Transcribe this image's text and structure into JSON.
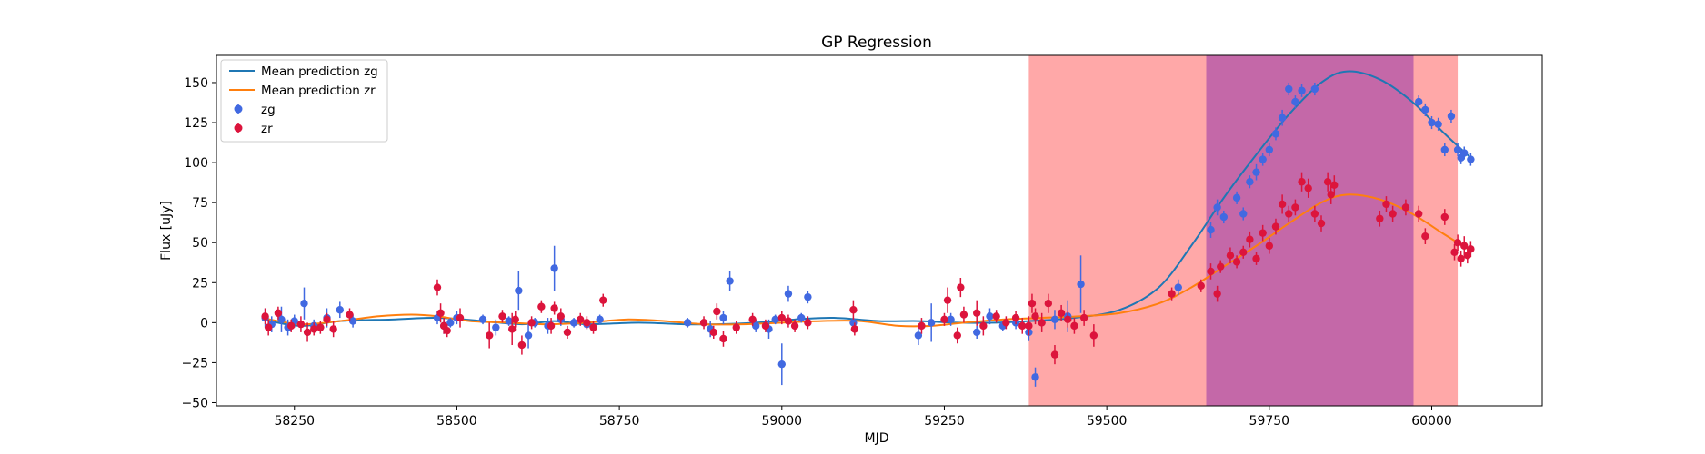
{
  "chart_data": {
    "type": "scatter",
    "title": "GP Regression",
    "xlabel": "MJD",
    "ylabel": "Flux [uJy]",
    "xlim": [
      58130,
      60170
    ],
    "ylim": [
      -52,
      167
    ],
    "xticks": [
      58250,
      58500,
      58750,
      59000,
      59250,
      59500,
      59750,
      60000
    ],
    "yticks": [
      -50,
      -25,
      0,
      25,
      50,
      75,
      100,
      125,
      150
    ],
    "grid": false,
    "legend_position": "top-left",
    "shaded_regions": [
      {
        "x_start": 59380,
        "x_end": 60040,
        "color": "#ffa8a8"
      },
      {
        "x_start": 59653,
        "x_end": 59972,
        "color": "#c468a8"
      }
    ],
    "series": [
      {
        "name": "Mean prediction zg",
        "kind": "line",
        "color": "#1f77b4",
        "x": [
          58200,
          58260,
          58320,
          58400,
          58470,
          58540,
          58600,
          58650,
          58700,
          58780,
          58850,
          58900,
          58960,
          59020,
          59080,
          59150,
          59210,
          59270,
          59330,
          59380,
          59450,
          59520,
          59580,
          59630,
          59680,
          59730,
          59780,
          59830,
          59870,
          59920,
          59970,
          60020,
          60060
        ],
        "y": [
          2,
          -2,
          1,
          2,
          3,
          1,
          -1,
          1,
          -1,
          0,
          -1,
          -1,
          0,
          2,
          3,
          1,
          1,
          0,
          0,
          1,
          3,
          8,
          22,
          48,
          78,
          105,
          130,
          150,
          157,
          152,
          138,
          118,
          103
        ]
      },
      {
        "name": "Mean prediction zr",
        "kind": "line",
        "color": "#ff7f0e",
        "x": [
          58200,
          58260,
          58320,
          58380,
          58430,
          58470,
          58520,
          58580,
          58640,
          58700,
          58760,
          58820,
          58880,
          58940,
          59000,
          59060,
          59120,
          59180,
          59230,
          59280,
          59340,
          59400,
          59460,
          59520,
          59580,
          59630,
          59680,
          59730,
          59780,
          59830,
          59870,
          59920,
          59970,
          60020,
          60060
        ],
        "y": [
          3,
          -1,
          1,
          4,
          5,
          4,
          1,
          0,
          -1,
          0,
          2,
          1,
          -1,
          -1,
          0,
          1,
          1,
          -2,
          -2,
          0,
          2,
          3,
          4,
          6,
          12,
          22,
          35,
          48,
          62,
          75,
          80,
          77,
          68,
          55,
          45
        ]
      },
      {
        "name": "zg",
        "kind": "points",
        "color": "#4169e1",
        "x": [
          58205,
          58215,
          58230,
          58240,
          58250,
          58265,
          58280,
          58300,
          58320,
          58340,
          58470,
          58480,
          58490,
          58500,
          58540,
          58560,
          58580,
          58595,
          58610,
          58620,
          58640,
          58650,
          58660,
          58680,
          58700,
          58720,
          58855,
          58890,
          58910,
          58920,
          58960,
          58980,
          58990,
          59000,
          59010,
          59030,
          59040,
          59110,
          59210,
          59230,
          59260,
          59300,
          59320,
          59340,
          59360,
          59380,
          59390,
          59420,
          59440,
          59460,
          59610,
          59660,
          59670,
          59680,
          59700,
          59710,
          59720,
          59730,
          59740,
          59750,
          59760,
          59770,
          59780,
          59790,
          59800,
          59820,
          59980,
          59990,
          60000,
          60010,
          60020,
          60030,
          60040,
          60045,
          60050,
          60060
        ],
        "y": [
          3,
          -1,
          2,
          -3,
          1,
          12,
          -2,
          3,
          8,
          1,
          3,
          -2,
          0,
          3,
          2,
          -3,
          1,
          20,
          -8,
          0,
          -2,
          34,
          2,
          0,
          -1,
          2,
          0,
          -4,
          3,
          26,
          -2,
          -4,
          2,
          -26,
          18,
          3,
          16,
          0,
          -8,
          0,
          2,
          -6,
          4,
          -2,
          0,
          -6,
          -34,
          2,
          4,
          24,
          22,
          58,
          72,
          66,
          78,
          68,
          88,
          94,
          102,
          108,
          118,
          128,
          146,
          138,
          145,
          146,
          138,
          133,
          125,
          124,
          108,
          129,
          108,
          103,
          106,
          102
        ],
        "err": [
          6,
          5,
          8,
          5,
          4,
          10,
          4,
          6,
          5,
          4,
          4,
          5,
          3,
          4,
          3,
          5,
          3,
          12,
          8,
          3,
          5,
          14,
          4,
          3,
          3,
          3,
          3,
          5,
          4,
          6,
          4,
          6,
          3,
          13,
          5,
          3,
          4,
          3,
          6,
          12,
          4,
          4,
          5,
          3,
          4,
          5,
          6,
          6,
          10,
          18,
          5,
          5,
          5,
          4,
          4,
          4,
          4,
          5,
          4,
          4,
          4,
          5,
          4,
          4,
          4,
          4,
          4,
          4,
          4,
          4,
          4,
          4,
          4,
          4,
          4,
          4
        ]
      },
      {
        "name": "zr",
        "kind": "points",
        "color": "#dc143c",
        "x": [
          58205,
          58210,
          58225,
          58245,
          58260,
          58270,
          58280,
          58290,
          58300,
          58310,
          58335,
          58470,
          58475,
          58480,
          58485,
          58505,
          58550,
          58570,
          58585,
          58590,
          58600,
          58615,
          58630,
          58645,
          58650,
          58660,
          58670,
          58690,
          58700,
          58710,
          58725,
          58880,
          58895,
          58900,
          58910,
          58930,
          58955,
          58975,
          59000,
          59010,
          59020,
          59040,
          59110,
          59112,
          59215,
          59250,
          59255,
          59270,
          59275,
          59280,
          59300,
          59310,
          59330,
          59345,
          59360,
          59370,
          59380,
          59385,
          59390,
          59400,
          59410,
          59420,
          59430,
          59440,
          59450,
          59465,
          59480,
          59600,
          59645,
          59660,
          59670,
          59675,
          59690,
          59700,
          59710,
          59720,
          59730,
          59740,
          59750,
          59760,
          59770,
          59780,
          59790,
          59800,
          59810,
          59820,
          59830,
          59840,
          59845,
          59850,
          59920,
          59930,
          59940,
          59960,
          59980,
          59990,
          60020,
          60035,
          60040,
          60045,
          60050,
          60055,
          60060
        ],
        "y": [
          4,
          -3,
          6,
          -2,
          -1,
          -6,
          -4,
          -3,
          2,
          -4,
          5,
          22,
          6,
          -2,
          -5,
          3,
          -8,
          4,
          -4,
          2,
          -14,
          0,
          10,
          -2,
          9,
          4,
          -6,
          2,
          0,
          -3,
          14,
          0,
          -6,
          7,
          -10,
          -3,
          2,
          -2,
          3,
          1,
          -2,
          0,
          8,
          -4,
          -2,
          2,
          14,
          -8,
          22,
          5,
          6,
          -2,
          4,
          0,
          3,
          -2,
          -2,
          12,
          4,
          0,
          12,
          -20,
          6,
          2,
          -2,
          3,
          -8,
          18,
          23,
          32,
          18,
          35,
          42,
          38,
          44,
          52,
          40,
          56,
          48,
          60,
          74,
          68,
          72,
          88,
          84,
          68,
          62,
          88,
          80,
          86,
          65,
          74,
          68,
          72,
          68,
          54,
          66,
          44,
          50,
          40,
          48,
          42,
          46
        ],
        "err": [
          5,
          5,
          4,
          4,
          5,
          6,
          4,
          4,
          4,
          5,
          4,
          5,
          6,
          5,
          4,
          6,
          8,
          4,
          10,
          5,
          6,
          4,
          4,
          5,
          4,
          5,
          4,
          4,
          4,
          4,
          4,
          4,
          4,
          5,
          5,
          4,
          4,
          4,
          4,
          4,
          4,
          4,
          6,
          4,
          5,
          4,
          8,
          5,
          6,
          5,
          8,
          6,
          4,
          4,
          4,
          5,
          6,
          6,
          5,
          6,
          6,
          6,
          5,
          5,
          5,
          5,
          7,
          4,
          4,
          5,
          5,
          4,
          5,
          4,
          4,
          5,
          4,
          5,
          5,
          5,
          6,
          5,
          5,
          6,
          6,
          5,
          5,
          6,
          6,
          6,
          5,
          5,
          5,
          5,
          5,
          5,
          5,
          5,
          5,
          5,
          6,
          5,
          5
        ]
      }
    ]
  }
}
